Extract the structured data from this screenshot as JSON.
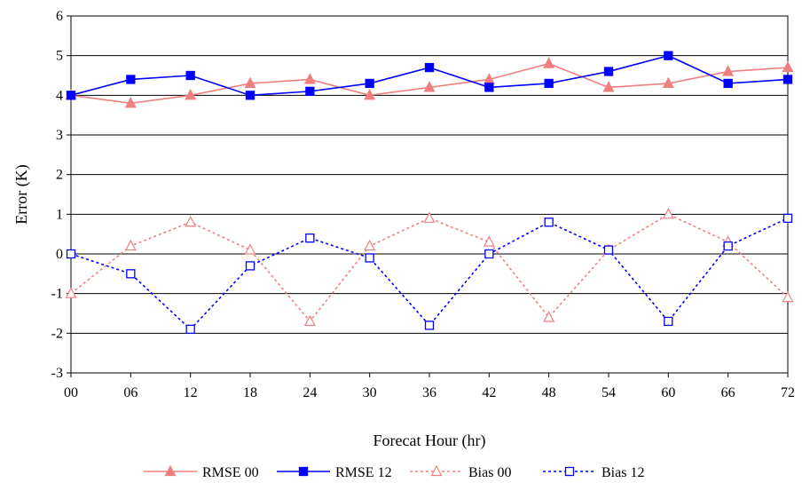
{
  "chart_data": {
    "type": "line",
    "title": "",
    "xlabel": "Forecat Hour (hr)",
    "ylabel": "Error (K)",
    "categories": [
      "00",
      "06",
      "12",
      "18",
      "24",
      "30",
      "36",
      "42",
      "48",
      "54",
      "60",
      "66",
      "72"
    ],
    "ylim": [
      -3,
      6
    ],
    "yticks": [
      -3,
      -2,
      -1,
      0,
      1,
      2,
      3,
      4,
      5,
      6
    ],
    "grid": "horizontal",
    "legend_position": "bottom",
    "series": [
      {
        "name": "RMSE 00",
        "values": [
          4.0,
          3.8,
          4.0,
          4.3,
          4.4,
          4.0,
          4.2,
          4.4,
          4.8,
          4.2,
          4.3,
          4.6,
          4.7
        ],
        "color": "#f08080",
        "marker": "triangle-filled",
        "dash": "solid"
      },
      {
        "name": "RMSE 12",
        "values": [
          4.0,
          4.4,
          4.5,
          4.0,
          4.1,
          4.3,
          4.7,
          4.2,
          4.3,
          4.6,
          5.0,
          4.3,
          4.4
        ],
        "color": "#0000ff",
        "marker": "square-filled",
        "dash": "solid"
      },
      {
        "name": "Bias 00",
        "values": [
          -1.0,
          0.2,
          0.8,
          0.1,
          -1.7,
          0.2,
          0.9,
          0.3,
          -1.6,
          0.1,
          1.0,
          0.3,
          -1.1
        ],
        "color": "#f08080",
        "marker": "triangle-open",
        "dash": "dotted"
      },
      {
        "name": "Bias 12",
        "values": [
          0.0,
          -0.5,
          -1.9,
          -0.3,
          0.4,
          -0.1,
          -1.8,
          0.0,
          0.8,
          0.1,
          -1.7,
          0.2,
          0.9
        ],
        "color": "#0000ff",
        "marker": "square-open",
        "dash": "dotted"
      }
    ]
  }
}
